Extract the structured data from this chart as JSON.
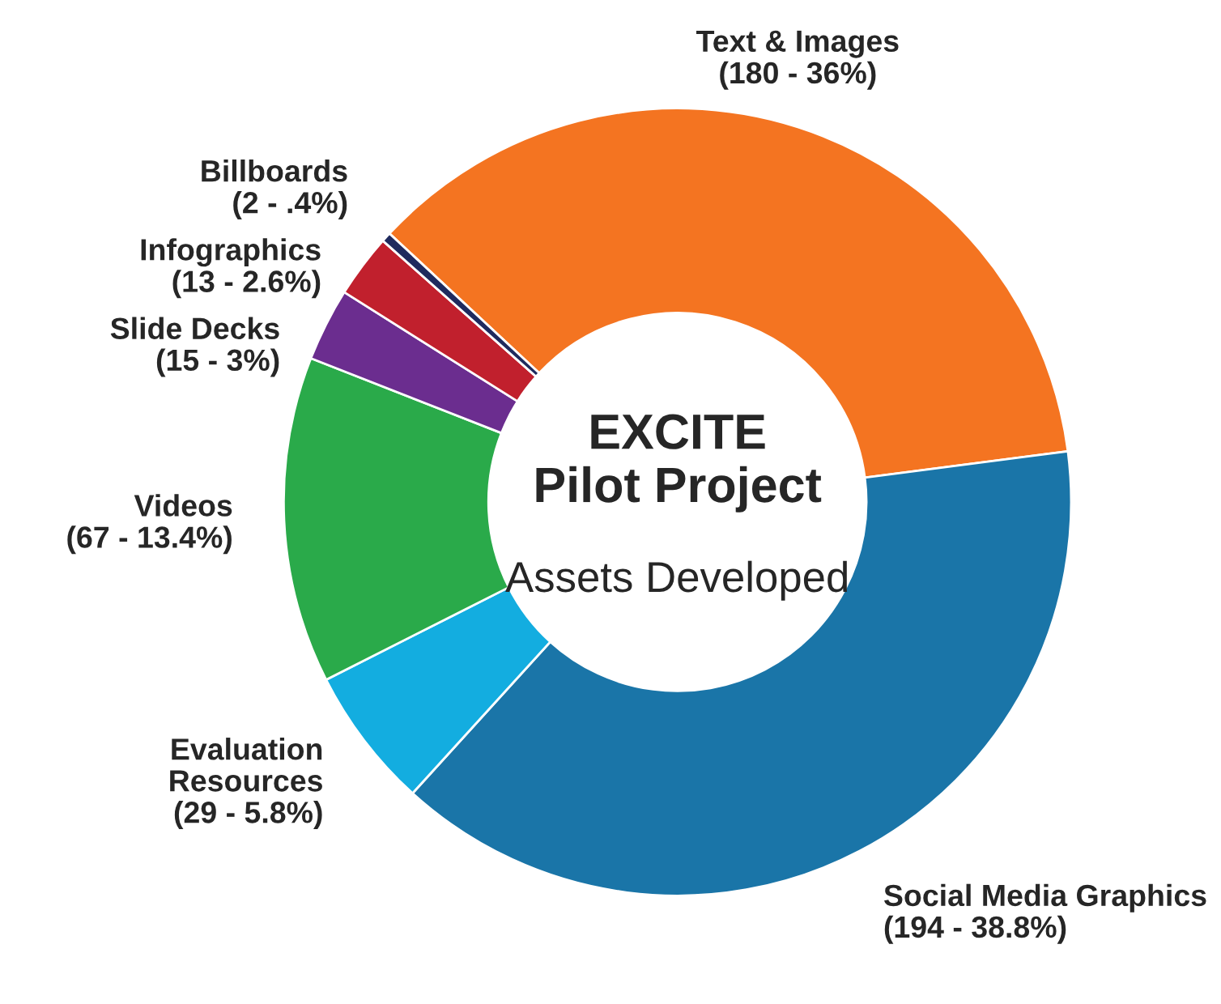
{
  "chart_data": {
    "type": "donut",
    "title": "EXCITE\nPilot Project",
    "subtitle": "Assets Developed",
    "categories": [
      "Text & Images",
      "Social Media Graphics",
      "Evaluation Resources",
      "Videos",
      "Slide Decks",
      "Infographics",
      "Billboards"
    ],
    "values": [
      180,
      194,
      29,
      67,
      15,
      13,
      2
    ],
    "value_labels": [
      "(180 - 36%)",
      "(194 - 38.8%)",
      "(29 - 5.8%)",
      "(67 - 13.4%)",
      "(15 - 3%)",
      "(13 - 2.6%)",
      "(2 - .4%)"
    ],
    "colors": [
      "#f47421",
      "#1a75a8",
      "#13ade0",
      "#2aaa4a",
      "#6b2d8f",
      "#c1202d",
      "#1f2a5e"
    ]
  }
}
